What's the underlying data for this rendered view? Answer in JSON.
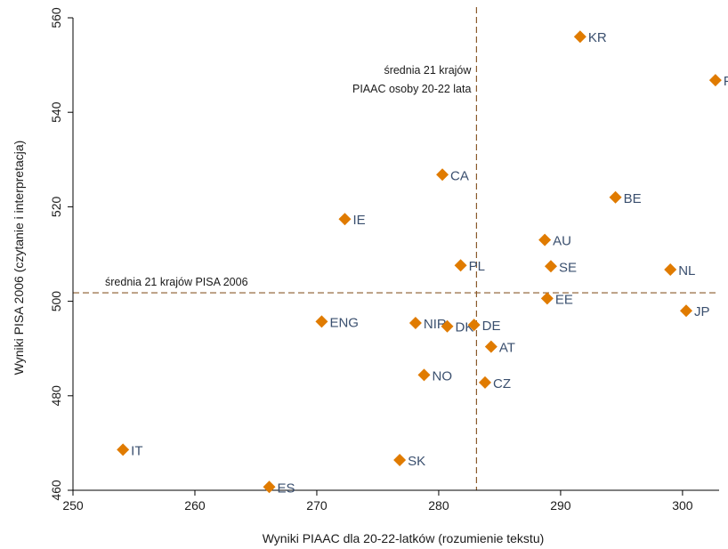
{
  "chart_data": {
    "type": "scatter",
    "title": "",
    "xlabel": "Wyniki PIAAC dla 20-22-latków (rozumienie tekstu)",
    "ylabel": "Wyniki PISA 2006 (czytanie i interpretacja)",
    "xlim": [
      250,
      303
    ],
    "ylim": [
      460,
      560
    ],
    "xticks": [
      250,
      260,
      270,
      280,
      290,
      300
    ],
    "yticks": [
      460,
      480,
      500,
      520,
      540,
      560
    ],
    "grid": false,
    "marker": "diamond",
    "marker_color": "#E07B00",
    "label_color": "#3A4F6E",
    "reference_lines": [
      {
        "axis": "x",
        "value": 283.1,
        "label_lines": [
          "średnia 21 krajów",
          "PIAAC osoby 20-22 lata"
        ]
      },
      {
        "axis": "y",
        "value": 501.8,
        "label_lines": [
          "średnia 21 krajów PISA 2006"
        ]
      }
    ],
    "points": [
      {
        "label": "KR",
        "x": 291.6,
        "y": 556.0
      },
      {
        "label": "FI",
        "x": 302.7,
        "y": 546.8
      },
      {
        "label": "CA",
        "x": 280.3,
        "y": 526.8
      },
      {
        "label": "BE",
        "x": 294.5,
        "y": 522.0
      },
      {
        "label": "IE",
        "x": 272.3,
        "y": 517.4
      },
      {
        "label": "AU",
        "x": 288.7,
        "y": 513.0
      },
      {
        "label": "PL",
        "x": 281.8,
        "y": 507.6
      },
      {
        "label": "SE",
        "x": 289.2,
        "y": 507.4
      },
      {
        "label": "NL",
        "x": 299.0,
        "y": 506.7
      },
      {
        "label": "EE",
        "x": 288.9,
        "y": 500.6
      },
      {
        "label": "JP",
        "x": 300.3,
        "y": 498.0
      },
      {
        "label": "ENG",
        "x": 270.4,
        "y": 495.7
      },
      {
        "label": "NIR",
        "x": 278.1,
        "y": 495.4
      },
      {
        "label": "DK",
        "x": 280.7,
        "y": 494.7
      },
      {
        "label": "DE",
        "x": 282.9,
        "y": 495.0
      },
      {
        "label": "AT",
        "x": 284.3,
        "y": 490.4
      },
      {
        "label": "NO",
        "x": 278.8,
        "y": 484.4
      },
      {
        "label": "CZ",
        "x": 283.8,
        "y": 482.8
      },
      {
        "label": "IT",
        "x": 254.1,
        "y": 468.6
      },
      {
        "label": "SK",
        "x": 276.8,
        "y": 466.4
      },
      {
        "label": "ES",
        "x": 266.1,
        "y": 460.7
      }
    ]
  }
}
